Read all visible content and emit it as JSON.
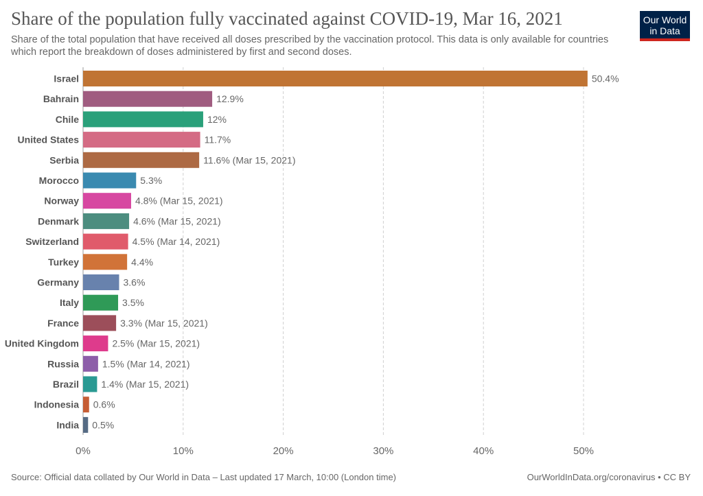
{
  "header": {
    "title": "Share of the population fully vaccinated against COVID-19, Mar 16, 2021",
    "subtitle": "Share of the total population that have received all doses prescribed by the vaccination protocol. This data is only available for countries which report the breakdown of doses administered by first and second doses.",
    "logo_line1": "Our World",
    "logo_line2": "in Data"
  },
  "footer": {
    "source": "Source: Official data collated by Our World in Data – Last updated 17 March, 10:00 (London time)",
    "link": "OurWorldInData.org/coronavirus • CC BY"
  },
  "chart_data": {
    "type": "bar",
    "orientation": "horizontal",
    "title": "Share of the population fully vaccinated against COVID-19, Mar 16, 2021",
    "xlim": [
      0,
      52
    ],
    "x_ticks": [
      0,
      10,
      20,
      30,
      40,
      50
    ],
    "x_tick_labels": [
      "0%",
      "10%",
      "20%",
      "30%",
      "40%",
      "50%"
    ],
    "grid": "vertical dashed",
    "categories": [
      "Israel",
      "Bahrain",
      "Chile",
      "United States",
      "Serbia",
      "Morocco",
      "Norway",
      "Denmark",
      "Switzerland",
      "Turkey",
      "Germany",
      "Italy",
      "France",
      "United Kingdom",
      "Russia",
      "Brazil",
      "Indonesia",
      "India"
    ],
    "values": [
      50.4,
      12.9,
      12,
      11.7,
      11.6,
      5.3,
      4.8,
      4.6,
      4.5,
      4.4,
      3.6,
      3.5,
      3.3,
      2.5,
      1.5,
      1.4,
      0.6,
      0.5
    ],
    "value_labels": [
      "50.4%",
      "12.9%",
      "12%",
      "11.7%",
      "11.6% (Mar 15, 2021)",
      "5.3%",
      "4.8% (Mar 15, 2021)",
      "4.6% (Mar 15, 2021)",
      "4.5% (Mar 14, 2021)",
      "4.4%",
      "3.6%",
      "3.5%",
      "3.3% (Mar 15, 2021)",
      "2.5% (Mar 15, 2021)",
      "1.5% (Mar 14, 2021)",
      "1.4% (Mar 15, 2021)",
      "0.6%",
      "0.5%"
    ],
    "colors": [
      "#c07434",
      "#a05c80",
      "#2aa07a",
      "#d46b84",
      "#ad6a44",
      "#3a8ab0",
      "#d748a1",
      "#4c8d7f",
      "#e05b6b",
      "#d17338",
      "#6882ad",
      "#2f9a57",
      "#9c4e5a",
      "#de3b8c",
      "#8d5ea9",
      "#2a9a93",
      "#c65d34",
      "#566b84"
    ]
  }
}
